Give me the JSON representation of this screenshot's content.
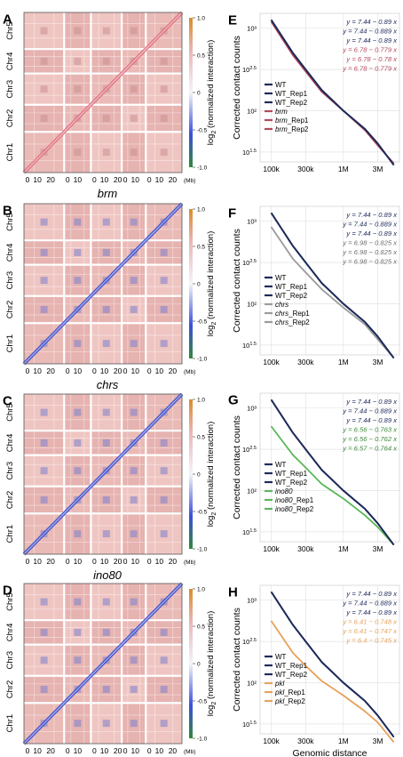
{
  "heatmaps": [
    {
      "panel": "A",
      "mutant": "brm"
    },
    {
      "panel": "B",
      "mutant": "chrs"
    },
    {
      "panel": "C",
      "mutant": "ino80"
    },
    {
      "panel": "D",
      "mutant": "pkl"
    }
  ],
  "chromosomes": [
    "Chr1",
    "Chr2",
    "Chr3",
    "Chr4",
    "Chr5"
  ],
  "heatmap_ticks": [
    "0",
    "10",
    "20",
    "0",
    "10",
    "0",
    "10",
    "20",
    "0",
    "10",
    "0",
    "10",
    "20"
  ],
  "mb_label": "(Mb)",
  "colorbar": {
    "ticks": [
      "1.0",
      "0.5",
      "0",
      "-0.5",
      "-1.0"
    ],
    "label_prefix": "log",
    "label_sub": "2",
    "label_suffix": " (normalized interaction)"
  },
  "colors": {
    "wt": "#1e2a5a",
    "brm": "#b5485d",
    "chrs": "#9c9c9c",
    "ino80": "#5cb85c",
    "pkl": "#e8a15b"
  },
  "chart_data": [
    {
      "panel": "E",
      "type": "line",
      "log_x": true,
      "log_y": true,
      "ylabel": "Corrected contact counts",
      "xlabel": "",
      "x_ticks": [
        "100k",
        "300k",
        "1M",
        "3M"
      ],
      "y_ticks": [
        "10³",
        "10^2.5",
        "10²",
        "10^1.5"
      ],
      "x": [
        100000,
        200000,
        300000,
        500000,
        1000000,
        2000000,
        3000000,
        5000000
      ],
      "series": [
        {
          "name": "WT",
          "color": "#1e2a5a",
          "y": [
            1260,
            500,
            316,
            178,
            100,
            60,
            40,
            22
          ]
        },
        {
          "name": "WT_Rep1",
          "color": "#1e2a5a",
          "y": [
            1260,
            500,
            316,
            178,
            100,
            60,
            40,
            22
          ]
        },
        {
          "name": "WT_Rep2",
          "color": "#1e2a5a",
          "y": [
            1260,
            500,
            316,
            178,
            100,
            60,
            40,
            22
          ]
        },
        {
          "name": "brm",
          "italic": true,
          "color": "#b5485d",
          "y": [
            1200,
            470,
            300,
            170,
            100,
            58,
            38,
            23
          ]
        },
        {
          "name": "brm_Rep1",
          "italic": true,
          "color": "#b5485d",
          "y": [
            1200,
            470,
            300,
            170,
            100,
            58,
            38,
            23
          ]
        },
        {
          "name": "brm_Rep2",
          "italic": true,
          "color": "#b5485d",
          "y": [
            1200,
            470,
            300,
            170,
            100,
            58,
            38,
            23
          ]
        }
      ],
      "equations": [
        {
          "text": "y = 7.44 − 0.89 x",
          "color": "#1e2a5a"
        },
        {
          "text": "y = 7.44 − 0.889 x",
          "color": "#1e2a5a"
        },
        {
          "text": "y = 7.44 − 0.89 x",
          "color": "#1e2a5a"
        },
        {
          "text": "y = 6.78 − 0.779 x",
          "color": "#b5485d"
        },
        {
          "text": "y = 6.78 − 0.78 x",
          "color": "#b5485d"
        },
        {
          "text": "y = 6.78 − 0.779 x",
          "color": "#b5485d"
        }
      ]
    },
    {
      "panel": "F",
      "type": "line",
      "log_x": true,
      "log_y": true,
      "ylabel": "Corrected contact counts",
      "xlabel": "",
      "x_ticks": [
        "100k",
        "300k",
        "1M",
        "3M"
      ],
      "y_ticks": [
        "10³",
        "10^2.5",
        "10²",
        "10^1.5"
      ],
      "x": [
        100000,
        200000,
        300000,
        500000,
        1000000,
        2000000,
        3000000,
        5000000
      ],
      "series": [
        {
          "name": "WT",
          "color": "#1e2a5a",
          "y": [
            1260,
            500,
            316,
            178,
            100,
            60,
            40,
            22
          ]
        },
        {
          "name": "WT_Rep1",
          "color": "#1e2a5a",
          "y": [
            1260,
            500,
            316,
            178,
            100,
            60,
            40,
            22
          ]
        },
        {
          "name": "WT_Rep2",
          "color": "#1e2a5a",
          "y": [
            1260,
            500,
            316,
            178,
            100,
            60,
            40,
            22
          ]
        },
        {
          "name": "chrs",
          "italic": true,
          "color": "#9c9c9c",
          "y": [
            850,
            350,
            240,
            150,
            90,
            56,
            37,
            22
          ]
        },
        {
          "name": "chrs_Rep1",
          "italic": true,
          "color": "#9c9c9c",
          "y": [
            850,
            350,
            240,
            150,
            90,
            56,
            37,
            22
          ]
        },
        {
          "name": "chrs_Rep2",
          "italic": true,
          "color": "#9c9c9c",
          "y": [
            850,
            350,
            240,
            150,
            90,
            56,
            37,
            22
          ]
        }
      ],
      "equations": [
        {
          "text": "y = 7.44 − 0.89 x",
          "color": "#1e2a5a"
        },
        {
          "text": "y = 7.44 − 0.889 x",
          "color": "#1e2a5a"
        },
        {
          "text": "y = 7.44 − 0.89 x",
          "color": "#1e2a5a"
        },
        {
          "text": "y = 6.98 − 0.825 x",
          "color": "#6e6e6e"
        },
        {
          "text": "y = 6.98 − 0.825 x",
          "color": "#6e6e6e"
        },
        {
          "text": "y = 6.98 − 0.825 x",
          "color": "#6e6e6e"
        }
      ]
    },
    {
      "panel": "G",
      "type": "line",
      "log_x": true,
      "log_y": true,
      "ylabel": "Corrected contact counts",
      "xlabel": "",
      "x_ticks": [
        "100k",
        "300k",
        "1M",
        "3M"
      ],
      "y_ticks": [
        "10³",
        "10^2.5",
        "10²",
        "10^1.5"
      ],
      "x": [
        100000,
        200000,
        300000,
        500000,
        1000000,
        2000000,
        3000000,
        5000000
      ],
      "series": [
        {
          "name": "WT",
          "color": "#1e2a5a",
          "y": [
            1260,
            500,
            316,
            178,
            100,
            60,
            40,
            22
          ]
        },
        {
          "name": "WT_Rep1",
          "color": "#1e2a5a",
          "y": [
            1260,
            500,
            316,
            178,
            100,
            60,
            40,
            22
          ]
        },
        {
          "name": "WT_Rep2",
          "color": "#1e2a5a",
          "y": [
            1260,
            500,
            316,
            178,
            100,
            60,
            40,
            22
          ]
        },
        {
          "name": "ino80",
          "italic": true,
          "color": "#5cb85c",
          "y": [
            600,
            270,
            190,
            120,
            80,
            50,
            36,
            22
          ]
        },
        {
          "name": "ino80_Rep1",
          "italic": true,
          "color": "#5cb85c",
          "y": [
            600,
            270,
            190,
            120,
            80,
            50,
            36,
            22
          ]
        },
        {
          "name": "ino80_Rep2",
          "italic": true,
          "color": "#5cb85c",
          "y": [
            600,
            270,
            190,
            120,
            80,
            50,
            36,
            22
          ]
        }
      ],
      "equations": [
        {
          "text": "y = 7.44 − 0.89 x",
          "color": "#1e2a5a"
        },
        {
          "text": "y = 7.44 − 0.889 x",
          "color": "#1e2a5a"
        },
        {
          "text": "y = 7.44 − 0.89 x",
          "color": "#1e2a5a"
        },
        {
          "text": "y = 6.56 − 0.763 x",
          "color": "#3c8a3c"
        },
        {
          "text": "y = 6.56 − 0.762 x",
          "color": "#3c8a3c"
        },
        {
          "text": "y = 6.57 − 0.764 x",
          "color": "#3c8a3c"
        }
      ]
    },
    {
      "panel": "H",
      "type": "line",
      "log_x": true,
      "log_y": true,
      "ylabel": "Corrected contact counts",
      "xlabel": "Genomic distance",
      "x_ticks": [
        "100k",
        "300k",
        "1M",
        "3M"
      ],
      "y_ticks": [
        "10³",
        "10^2.5",
        "10²",
        "10^1.5"
      ],
      "x": [
        100000,
        200000,
        300000,
        500000,
        1000000,
        2000000,
        3000000,
        5000000
      ],
      "series": [
        {
          "name": "WT",
          "color": "#1e2a5a",
          "y": [
            1260,
            500,
            316,
            178,
            100,
            60,
            40,
            22
          ]
        },
        {
          "name": "WT_Rep1",
          "color": "#1e2a5a",
          "y": [
            1260,
            500,
            316,
            178,
            100,
            60,
            40,
            22
          ]
        },
        {
          "name": "WT_Rep2",
          "color": "#1e2a5a",
          "y": [
            1260,
            500,
            316,
            178,
            100,
            60,
            40,
            22
          ]
        },
        {
          "name": "pkl",
          "italic": true,
          "color": "#e8a15b",
          "y": [
            560,
            230,
            160,
            105,
            70,
            45,
            33,
            19
          ]
        },
        {
          "name": "pkl_Rep1",
          "italic": true,
          "color": "#e8a15b",
          "y": [
            560,
            230,
            160,
            105,
            70,
            45,
            33,
            19
          ]
        },
        {
          "name": "pkl_Rep2",
          "italic": true,
          "color": "#e8a15b",
          "y": [
            560,
            230,
            160,
            105,
            70,
            45,
            33,
            19
          ]
        }
      ],
      "equations": [
        {
          "text": "y = 7.44 − 0.89 x",
          "color": "#1e2a5a"
        },
        {
          "text": "y = 7.44 − 0.889 x",
          "color": "#1e2a5a"
        },
        {
          "text": "y = 7.44 − 0.89 x",
          "color": "#1e2a5a"
        },
        {
          "text": "y = 6.41 − 0.748 x",
          "color": "#e8a15b"
        },
        {
          "text": "y = 6.41 − 0.747 x",
          "color": "#e8a15b"
        },
        {
          "text": "y = 6.4 − 0.745 x",
          "color": "#e8a15b"
        }
      ]
    }
  ]
}
